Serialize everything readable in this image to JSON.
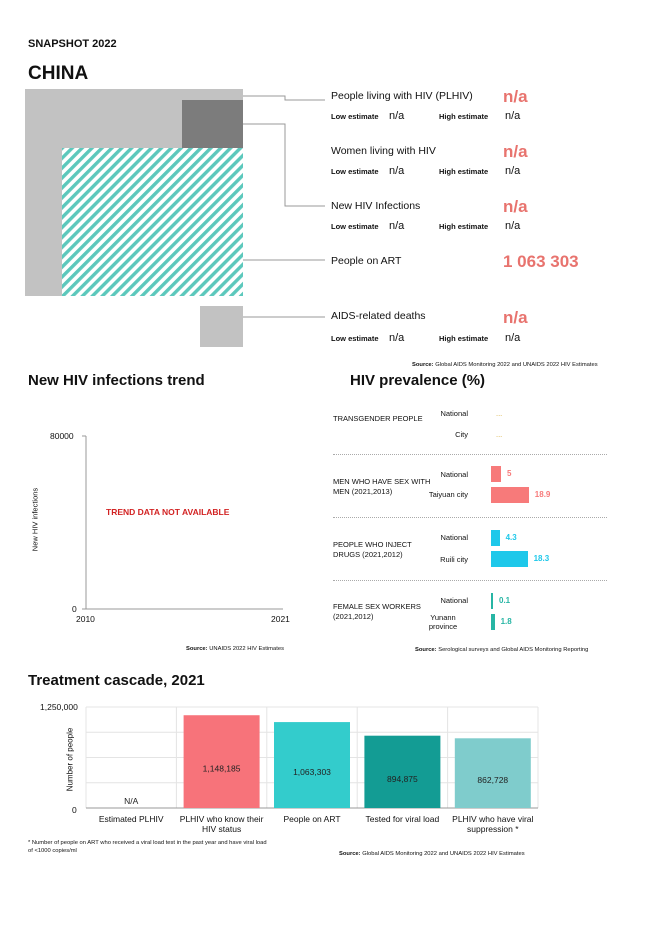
{
  "header": {
    "snapshot": "SNAPSHOT 2022",
    "country": "CHINA"
  },
  "estimates": {
    "plhiv": {
      "label": "People living with HIV (PLHIV)",
      "value": "n/a",
      "low_label": "Low estimate",
      "low": "n/a",
      "high_label": "High estimate",
      "high": "n/a"
    },
    "women": {
      "label": "Women living with HIV",
      "value": "n/a",
      "low_label": "Low estimate",
      "low": "n/a",
      "high_label": "High estimate",
      "high": "n/a"
    },
    "new_infections": {
      "label": "New HIV Infections",
      "value": "n/a",
      "low_label": "Low estimate",
      "low": "n/a",
      "high_label": "High estimate",
      "high": "n/a"
    },
    "art": {
      "label": "People on ART",
      "value": "1 063 303"
    },
    "deaths": {
      "label": "AIDS-related deaths",
      "value": "n/a",
      "low_label": "Low estimate",
      "low": "n/a",
      "high_label": "High estimate",
      "high": "n/a"
    },
    "source_bold": "Source:",
    "source": "Global AIDS Monitoring 2022 and UNAIDS 2022 HIV Estimates"
  },
  "trend": {
    "title": "New HIV infections trend",
    "y_label": "New HIV infections",
    "y_max": "80000",
    "y_min": "0",
    "x_start": "2010",
    "x_end": "2021",
    "message": "TREND DATA NOT AVAILABLE",
    "source_bold": "Source:",
    "source": "UNAIDS 2022 HIV Estimates"
  },
  "prevalence": {
    "title": "HIV prevalence (%)",
    "groups": [
      {
        "name": "TRANSGENDER PEOPLE",
        "rows": [
          {
            "label": "National",
            "value": "..."
          },
          {
            "label": "City",
            "value": "..."
          }
        ]
      },
      {
        "name": "MEN WHO HAVE SEX WITH MEN (2021,2013)",
        "rows": [
          {
            "label": "National",
            "value": "5"
          },
          {
            "label": "Taiyuan city",
            "value": "18.9"
          }
        ]
      },
      {
        "name": "PEOPLE WHO INJECT DRUGS (2021,2012)",
        "rows": [
          {
            "label": "National",
            "value": "4.3"
          },
          {
            "label": "Ruili city",
            "value": "18.3"
          }
        ]
      },
      {
        "name": "FEMALE SEX WORKERS (2021,2012)",
        "rows": [
          {
            "label": "National",
            "value": "0.1"
          },
          {
            "label": "Yunann province",
            "value": "1.8"
          }
        ]
      }
    ],
    "source_bold": "Source:",
    "source": "Serological surveys and Global AIDS Monitoring Reporting"
  },
  "cascade": {
    "title": "Treatment cascade, 2021",
    "y_label": "Number of people",
    "footnote": "* Number of people on ART who received a viral load test in the past year and have viral load of <1000 copies/ml",
    "source_bold": "Source:",
    "source": "Global AIDS Monitoring 2022 and UNAIDS 2022 HIV Estimates"
  },
  "chart_data": [
    {
      "type": "bar",
      "title": "Treatment cascade, 2021",
      "ylabel": "Number of people",
      "ylim": [
        0,
        1250000
      ],
      "yticks": [
        "1,250,000",
        "0"
      ],
      "categories": [
        "Estimated PLHIV",
        "PLHIV who know their HIV status",
        "People on ART",
        "Tested for viral load",
        "PLHIV who have viral suppression *"
      ],
      "values": [
        null,
        1148185,
        1063303,
        894875,
        862728
      ],
      "value_labels": [
        "N/A",
        "1,148,185",
        "1,063,303",
        "894,875",
        "862,728"
      ],
      "colors": [
        "#cccccc",
        "#f7737a",
        "#33cccc",
        "#139c94",
        "#7fcccc"
      ]
    },
    {
      "type": "bar",
      "title": "HIV prevalence (%)",
      "orientation": "horizontal",
      "categories": [
        "MSM National",
        "MSM Taiyuan city",
        "PWID National",
        "PWID Ruili city",
        "FSW National",
        "FSW Yunann province"
      ],
      "values": [
        5,
        18.9,
        4.3,
        18.3,
        0.1,
        1.8
      ],
      "colors": [
        "#f77a7a",
        "#f77a7a",
        "#1ec8ea",
        "#1ec8ea",
        "#27b5a4",
        "#27b5a4"
      ]
    },
    {
      "type": "line",
      "title": "New HIV infections trend",
      "xlabel": "",
      "ylabel": "New HIV infections",
      "xlim": [
        2010,
        2021
      ],
      "ylim": [
        0,
        80000
      ],
      "series": []
    }
  ]
}
